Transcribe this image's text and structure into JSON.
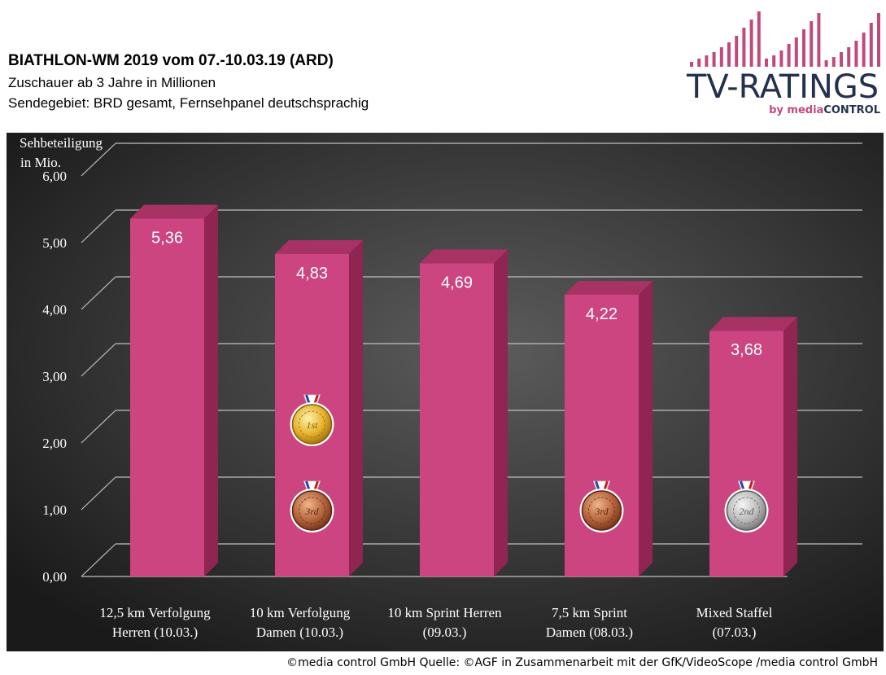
{
  "header": {
    "title": "BIATHLON-WM 2019 vom 07.-10.03.19 (ARD)",
    "subtitle_1": "Zuschauer ab 3 Jahre in Millionen",
    "subtitle_2": "Sendegebiet: BRD gesamt, Fernsehpanel deutschsprachig"
  },
  "logo": {
    "wordmark": "TV-RATINGS",
    "tagline_by": "by",
    "tagline_media": "media",
    "tagline_control": "CONTROL",
    "bar_color": "#c04a7c",
    "text_color": "#23314d"
  },
  "footer": {
    "text": "©media control GmbH  Quelle: ©AGF in Zusammenarbeit  mit der GfK/VideoScope  /media control GmbH"
  },
  "chart_data": {
    "type": "bar",
    "ylabel_line1": "Sehbeteiligung",
    "ylabel_line2": "in Mio.",
    "ylim": [
      0,
      6
    ],
    "yticks": [
      "0,00",
      "1,00",
      "2,00",
      "3,00",
      "4,00",
      "5,00",
      "6,00"
    ],
    "grid": true,
    "categories": [
      [
        "12,5 km Verfolgung",
        "Herren (10.03.)"
      ],
      [
        "10 km Verfolgung",
        "Damen (10.03.)"
      ],
      [
        "10 km Sprint Herren",
        "(09.03.)"
      ],
      [
        "7,5 km Sprint",
        "Damen (08.03.)"
      ],
      [
        "Mixed Staffel",
        "(07.03.)"
      ]
    ],
    "values": [
      5.36,
      4.83,
      4.69,
      4.22,
      3.68
    ],
    "value_labels": [
      "5,36",
      "4,83",
      "4,69",
      "4,22",
      "3,68"
    ],
    "medals": [
      [],
      [
        {
          "type": "gold",
          "label": "1st"
        },
        {
          "type": "bronze",
          "label": "3rd"
        }
      ],
      [],
      [
        {
          "type": "bronze",
          "label": "3rd"
        }
      ],
      [
        {
          "type": "silver",
          "label": "2nd"
        }
      ]
    ],
    "colors": {
      "bar_front": "#cc4480",
      "bar_side": "#8f2550",
      "bar_top": "#a83264",
      "background_dark": "#1c1c1c",
      "background_light": "#5a5a5a",
      "grid": "#bfbfbf",
      "text": "#ffffff"
    }
  }
}
